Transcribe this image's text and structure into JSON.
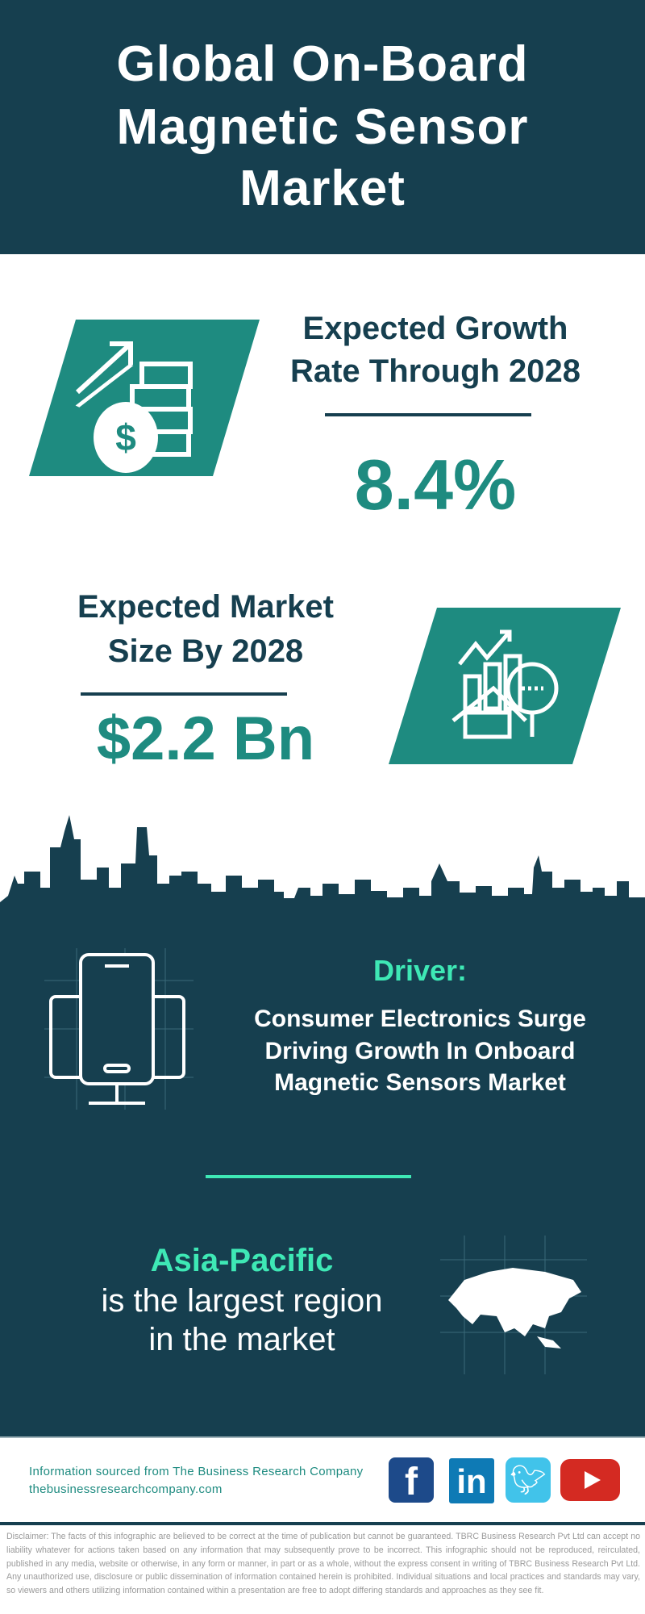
{
  "header": {
    "title_lines": [
      "Global On-Board",
      "Magnetic Sensor",
      "Market"
    ]
  },
  "growth": {
    "label_lines": [
      "Expected Growth",
      "Rate Through 2028"
    ],
    "value": "8.4%",
    "icon": "dollar-coins-growth-icon"
  },
  "market_size": {
    "label_lines": [
      "Expected Market",
      "Size By 2028"
    ],
    "value": "$2.2 Bn",
    "icon": "market-analysis-icon"
  },
  "driver": {
    "heading": "Driver:",
    "lines": [
      "Consumer Electronics Surge",
      "Driving Growth In Onboard",
      "Magnetic Sensors Market"
    ],
    "icon": "phone-monitor-icon"
  },
  "region": {
    "name": "Asia-Pacific",
    "lines": [
      "is the largest region",
      "in the market"
    ],
    "icon": "asia-map-icon"
  },
  "footer": {
    "source": "Information sourced from The Business Research Company",
    "url": "thebusinessresearchcompany.com",
    "social": [
      "facebook",
      "linkedin",
      "twitter",
      "youtube"
    ]
  },
  "disclaimer": "Disclaimer: The facts of this infographic are believed to be correct at the time of publication but cannot be guaranteed. TBRC Business Research Pvt Ltd can accept no liability whatever for actions taken based on any information that may subsequently prove to be incorrect. This infographic should not be reproduced, reirculated, published in any media, website or otherwise, in any form or manner, in part or as a whole, without the express consent in writing of TBRC Business Research Pvt Ltd. Any unauthorized use, disclosure or public dissemination of information contained herein is prohibited. Individual situations and local practices and standards may vary, so viewers and others utilizing information contained within a presentation are free to adopt differing standards and approaches as they see fit.",
  "colors": {
    "dark": "#163f4f",
    "teal": "#1e8b80",
    "accent": "#3ee8b5"
  }
}
